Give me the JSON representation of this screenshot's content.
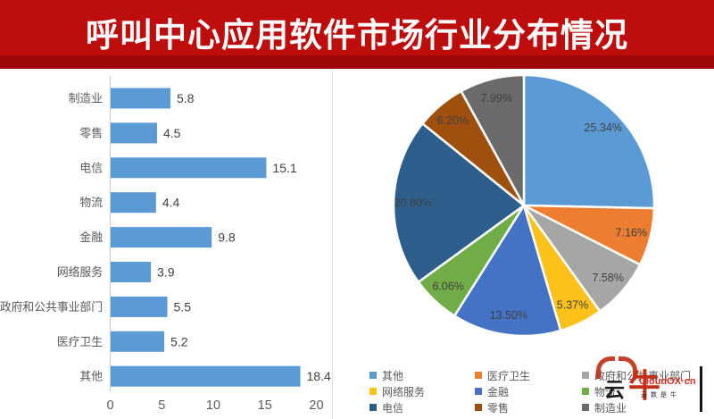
{
  "title": {
    "text": "呼叫中心应用软件市场行业分布情况"
  },
  "colors": {
    "banner_red": "#be0d0d",
    "banner_red_dark": "#9c0808",
    "bar_blue": "#5b9bd5",
    "axis_text": "#595959",
    "value_text": "#3f3f3f"
  },
  "chart_data": [
    {
      "type": "bar",
      "orientation": "horizontal",
      "title": "",
      "xlabel": "",
      "ylabel": "",
      "grid": false,
      "categories": [
        "制造业",
        "零售",
        "电信",
        "物流",
        "金融",
        "网络服务",
        "政府和公共事业部门",
        "医疗卫生",
        "其他"
      ],
      "values": [
        5.8,
        4.5,
        15.1,
        4.4,
        9.8,
        3.9,
        5.5,
        5.2,
        18.4
      ],
      "data_labels": [
        "5.8",
        "4.5",
        "15.1",
        "4.4",
        "9.8",
        "3.9",
        "5.5",
        "5.2",
        "18.4"
      ],
      "xlim": [
        0,
        20
      ],
      "x_ticks": [
        "0",
        "5",
        "10",
        "15",
        "20"
      ],
      "bar_color": "#5b9bd5"
    },
    {
      "type": "pie",
      "title": "",
      "start_angle": "top",
      "direction": "clockwise",
      "legend_position": "bottom",
      "slices": [
        {
          "label": "其他",
          "value": 25.34,
          "pct_label": "25.34%",
          "color": "#5b9bd5"
        },
        {
          "label": "医疗卫生",
          "value": 7.16,
          "pct_label": "7.16%",
          "color": "#ed7d31"
        },
        {
          "label": "政府和公共事业部门",
          "value": 7.58,
          "pct_label": "7.58%",
          "color": "#a6a6a6"
        },
        {
          "label": "网络服务",
          "value": 5.37,
          "pct_label": "5.37%",
          "color": "#fdc21a"
        },
        {
          "label": "金融",
          "value": 13.5,
          "pct_label": "13.50%",
          "color": "#4472c4"
        },
        {
          "label": "物流",
          "value": 6.06,
          "pct_label": "6.06%",
          "color": "#70ad47"
        },
        {
          "label": "电信",
          "value": 20.8,
          "pct_label": "20.80%",
          "color": "#2e5f8c"
        },
        {
          "label": "零售",
          "value": 6.2,
          "pct_label": "6.20%",
          "color": "#a0500e"
        },
        {
          "label": "制造业",
          "value": 7.99,
          "pct_label": "7.99%",
          "color": "#6b6b6b"
        }
      ],
      "legend_order": [
        "其他",
        "医疗卫生",
        "政府和公共事业部门",
        "网络服务",
        "金融",
        "物流",
        "电信",
        "零售",
        "制造业"
      ]
    }
  ],
  "watermark": {
    "logo_part1": "云",
    "logo_part2": "牛",
    "site": "CloudOX·cn",
    "slogan": "云数是牛"
  }
}
